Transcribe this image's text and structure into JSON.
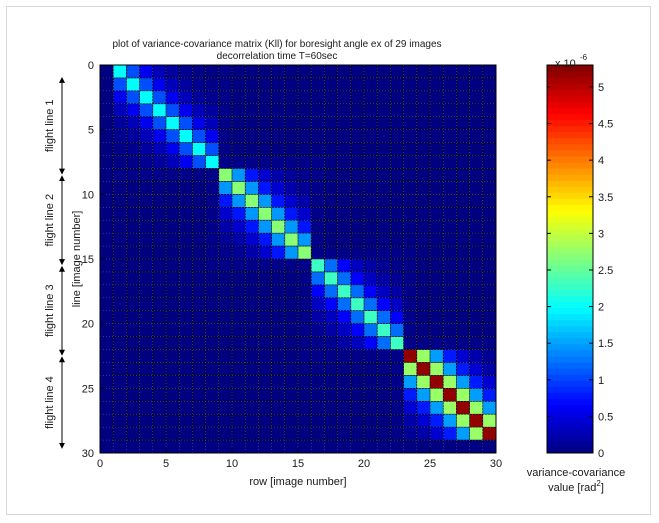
{
  "chart_data": {
    "type": "heatmap",
    "title": "plot of variance-covariance matrix (Kll) for boresight angle ex of 29 images",
    "subtitle": "decorrelation time T=60sec",
    "xlabel": "row [image number]",
    "ylabel": "line [image number]",
    "xlim": [
      0,
      30
    ],
    "ylim": [
      30,
      0
    ],
    "xticks": [
      0,
      5,
      10,
      15,
      20,
      25,
      30
    ],
    "yticks": [
      0,
      5,
      10,
      15,
      20,
      25,
      30
    ],
    "grid": true,
    "n": 29,
    "blocks": [
      {
        "label": "flight line 1",
        "start": 1,
        "end": 8,
        "peak": 2.0
      },
      {
        "label": "flight line 2",
        "start": 9,
        "end": 15,
        "peak": 2.7
      },
      {
        "label": "flight line 3",
        "start": 16,
        "end": 22,
        "peak": 2.3
      },
      {
        "label": "flight line 4",
        "start": 23,
        "end": 29,
        "peak": 5.2
      }
    ],
    "values_note_omitted": "",
    "colorbar": {
      "label": "variance-covariance value [rad 2]",
      "label_line1": "variance-covariance",
      "label_line2": "value [rad",
      "label_sup": "2",
      "label_end": "]",
      "scale_base": "x 10",
      "scale_exp": "-6",
      "min": 0,
      "max": 5.3,
      "ticks": [
        0,
        0.5,
        1,
        1.5,
        2,
        2.5,
        3,
        3.5,
        4,
        4.5,
        5
      ],
      "colormap": "jet"
    }
  },
  "colors": {
    "background": "#1e2a78",
    "grid": "#000000"
  }
}
